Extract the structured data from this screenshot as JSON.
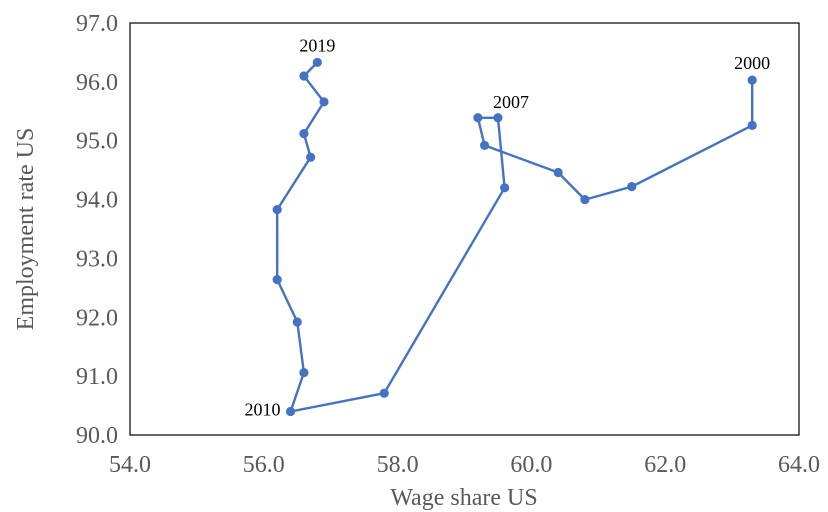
{
  "chart_data": {
    "type": "scatter",
    "title": "",
    "xlabel": "Wage share US",
    "ylabel": "Employment rate US",
    "xlim": [
      54.0,
      64.0
    ],
    "ylim": [
      90.0,
      97.0
    ],
    "x_ticks": [
      54.0,
      56.0,
      58.0,
      60.0,
      62.0,
      64.0
    ],
    "y_ticks": [
      90.0,
      91.0,
      92.0,
      93.0,
      94.0,
      95.0,
      96.0,
      97.0
    ],
    "x_tick_labels": [
      "54.0",
      "56.0",
      "58.0",
      "60.0",
      "62.0",
      "64.0"
    ],
    "y_tick_labels": [
      "90.0",
      "91.0",
      "92.0",
      "93.0",
      "94.0",
      "95.0",
      "96.0",
      "97.0"
    ],
    "grid": false,
    "connected": true,
    "marker": "circle",
    "series_color": "#4472C4",
    "series": [
      {
        "points": [
          {
            "x": 63.3,
            "y": 96.03
          },
          {
            "x": 63.3,
            "y": 95.26
          },
          {
            "x": 61.5,
            "y": 94.22
          },
          {
            "x": 60.8,
            "y": 94.0
          },
          {
            "x": 60.4,
            "y": 94.46
          },
          {
            "x": 59.3,
            "y": 94.92
          },
          {
            "x": 59.2,
            "y": 95.39
          },
          {
            "x": 59.5,
            "y": 95.39
          },
          {
            "x": 59.6,
            "y": 94.2
          },
          {
            "x": 57.8,
            "y": 90.71
          },
          {
            "x": 56.4,
            "y": 90.4
          },
          {
            "x": 56.6,
            "y": 91.06
          },
          {
            "x": 56.5,
            "y": 91.92
          },
          {
            "x": 56.2,
            "y": 92.64
          },
          {
            "x": 56.2,
            "y": 93.83
          },
          {
            "x": 56.7,
            "y": 94.72
          },
          {
            "x": 56.6,
            "y": 95.12
          },
          {
            "x": 56.9,
            "y": 95.66
          },
          {
            "x": 56.6,
            "y": 96.1
          },
          {
            "x": 56.8,
            "y": 96.33
          }
        ]
      }
    ],
    "annotations": [
      {
        "text": "2000",
        "x": 63.3,
        "y": 96.03,
        "placement": "above"
      },
      {
        "text": "2007",
        "x": 59.5,
        "y": 95.39,
        "placement": "above-right"
      },
      {
        "text": "2010",
        "x": 56.4,
        "y": 90.4,
        "placement": "left"
      },
      {
        "text": "2019",
        "x": 56.8,
        "y": 96.33,
        "placement": "above"
      }
    ]
  }
}
